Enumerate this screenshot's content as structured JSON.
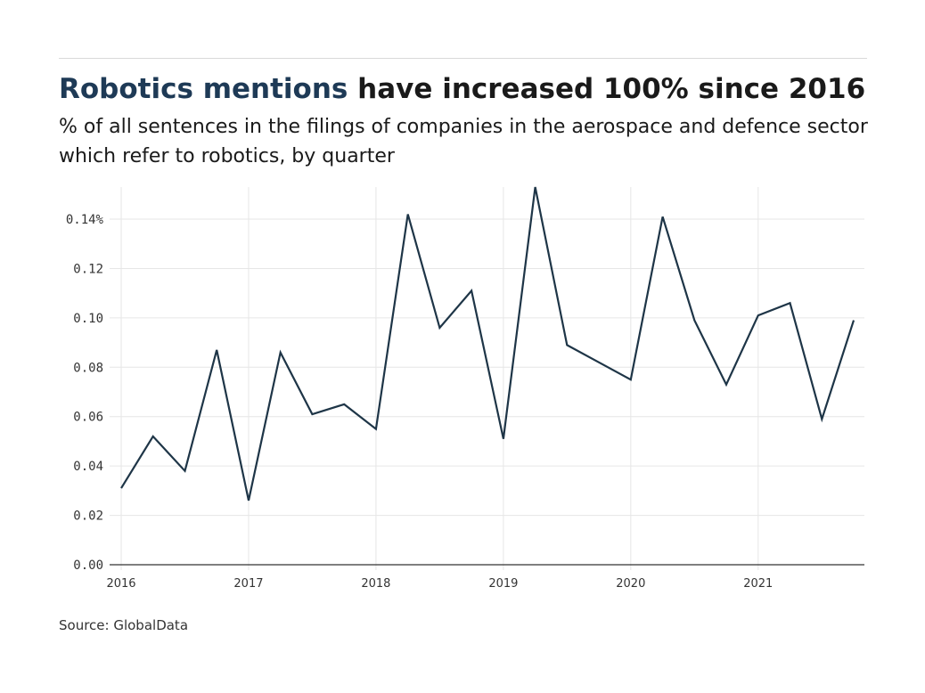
{
  "header": {
    "title_highlight": "Robotics mentions",
    "title_rest": " have increased 100% since 2016",
    "subtitle": "% of all sentences in the filings of companies in the aerospace and defence sector which refer to robotics, by quarter"
  },
  "footer": {
    "source": "Source: GlobalData"
  },
  "colors": {
    "line": "#1e3547",
    "title_accent": "#1e3a56",
    "grid": "#e6e6e6",
    "axis": "#333333"
  },
  "chart_data": {
    "type": "line",
    "title": "Robotics mentions have increased 100% since 2016",
    "subtitle": "% of all sentences in the filings of companies in the aerospace and defence sector which refer to robotics, by quarter",
    "xlabel": "",
    "ylabel": "",
    "xlim": [
      2016,
      2021.75
    ],
    "ylim": [
      0,
      0.153
    ],
    "x_ticks": [
      2016,
      2017,
      2018,
      2019,
      2020,
      2021
    ],
    "y_ticks": [
      0,
      0.02,
      0.04,
      0.06,
      0.08,
      0.1,
      0.12,
      0.14
    ],
    "y_tick_labels": [
      "0.00",
      "0.02",
      "0.04",
      "0.06",
      "0.08",
      "0.10",
      "0.12",
      "0.14%"
    ],
    "grid": true,
    "series": [
      {
        "x": [
          2016,
          2016.25,
          2016.5,
          2016.75,
          2017,
          2017.25,
          2017.5,
          2017.75,
          2018,
          2018.25,
          2018.5,
          2018.75,
          2019,
          2019.25,
          2019.5,
          2019.75,
          2020,
          2020.25,
          2020.5,
          2020.75,
          2021,
          2021.25,
          2021.5,
          2021.75
        ],
        "values": [
          0.031,
          0.052,
          0.038,
          0.087,
          0.026,
          0.086,
          0.061,
          0.065,
          0.055,
          0.142,
          0.096,
          0.111,
          0.051,
          0.153,
          0.089,
          0.082,
          0.075,
          0.141,
          0.099,
          0.073,
          0.101,
          0.106,
          0.059,
          0.099
        ]
      }
    ]
  }
}
